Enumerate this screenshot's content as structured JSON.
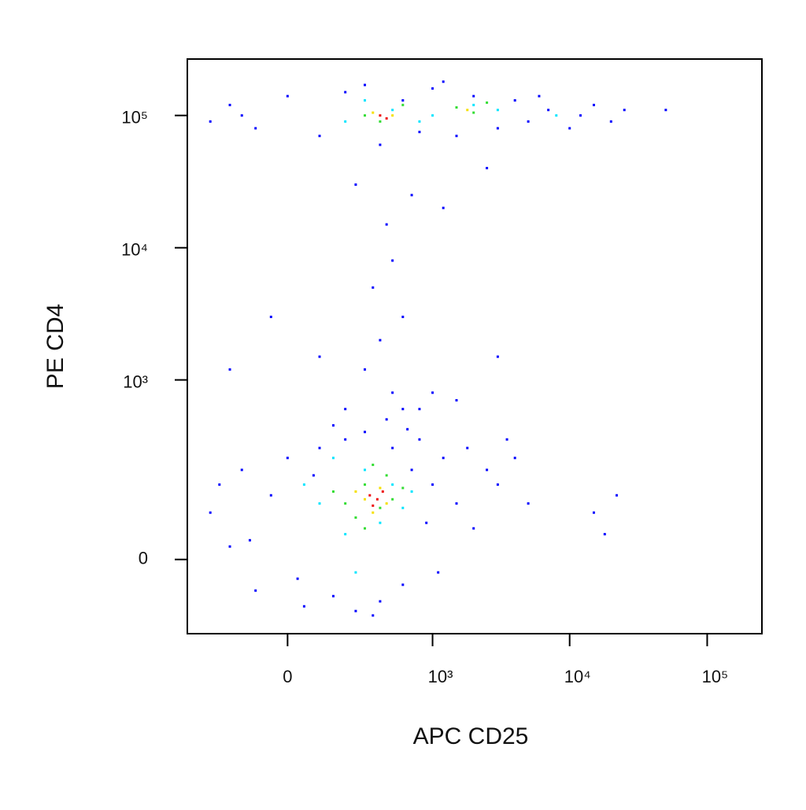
{
  "chart_data": {
    "type": "scatter",
    "xlabel": "APC CD25",
    "ylabel": "PE CD4",
    "xscale": "biexponential",
    "yscale": "biexponential",
    "xlim": [
      -460,
      250000
    ],
    "ylim": [
      -148,
      267000
    ],
    "xticks": [
      0,
      {
        "value": 1000,
        "label": "10³"
      },
      {
        "value": 10000,
        "label": "10⁴"
      },
      {
        "value": 100000,
        "label": "10⁵"
      }
    ],
    "yticks": [
      0,
      {
        "value": 1000,
        "label": "10³"
      },
      {
        "value": 10000,
        "label": "10⁴"
      },
      {
        "value": 100000,
        "label": "10⁵"
      }
    ],
    "series": [
      {
        "color": "#0000ff",
        "x": [
          -300,
          -250,
          -200,
          -150,
          -100,
          -50,
          0,
          50,
          80,
          100,
          150,
          200,
          250,
          300,
          400,
          500,
          600,
          700,
          800,
          900,
          1000,
          1200,
          1500,
          1800,
          2000,
          2500,
          3000,
          4000,
          5000,
          15000,
          18000,
          22000,
          -120,
          30,
          150,
          450,
          650,
          350,
          1100,
          3500,
          300,
          400,
          500,
          350,
          600,
          450,
          500,
          250,
          700,
          -50,
          100,
          800,
          1500,
          -200,
          3000,
          1200,
          2500,
          200,
          600,
          1000,
          -300,
          -200,
          -100,
          0,
          100,
          200,
          400,
          600,
          800,
          1000,
          1500,
          2000,
          3000,
          4000,
          5000,
          7000,
          10000,
          15000,
          20000,
          25000,
          50000,
          -150,
          300,
          1200,
          6000,
          12000
        ],
        "y": [
          80,
          150,
          20,
          200,
          -50,
          120,
          250,
          -80,
          180,
          300,
          -60,
          350,
          -90,
          400,
          -70,
          300,
          -40,
          200,
          350,
          60,
          150,
          250,
          100,
          300,
          50,
          200,
          150,
          250,
          100,
          80,
          40,
          120,
          30,
          -30,
          450,
          500,
          420,
          -100,
          -20,
          350,
          1200,
          2000,
          800,
          5000,
          3000,
          15000,
          8000,
          30000,
          25000,
          3000,
          1500,
          600,
          700,
          1200,
          1500,
          20000,
          40000,
          600,
          600,
          800,
          90000,
          120000,
          80000,
          140000,
          70000,
          150000,
          60000,
          130000,
          75000,
          160000,
          70000,
          140000,
          80000,
          130000,
          90000,
          110000,
          80000,
          120000,
          90000,
          110000,
          110000,
          100000,
          170000,
          180000,
          140000,
          100000
        ]
      },
      {
        "color": "#00e5ff",
        "x": [
          100,
          200,
          300,
          400,
          500,
          150,
          600,
          250,
          700,
          50,
          200,
          500,
          1000,
          2000,
          300,
          800,
          3000,
          8000
        ],
        "y": [
          100,
          40,
          200,
          60,
          150,
          250,
          90,
          -20,
          130,
          150,
          90000,
          110000,
          100000,
          120000,
          130000,
          90000,
          110000,
          100000
        ]
      },
      {
        "color": "#33dd33",
        "x": [
          200,
          300,
          400,
          250,
          350,
          500,
          450,
          150,
          600,
          300,
          300,
          400,
          1500,
          2000,
          600,
          2500
        ],
        "y": [
          100,
          150,
          90,
          70,
          220,
          110,
          180,
          130,
          140,
          50,
          100000,
          90000,
          115000,
          105000,
          120000,
          125000
        ]
      },
      {
        "color": "#f5e000",
        "x": [
          300,
          400,
          350,
          250,
          450,
          350,
          500,
          1800
        ],
        "y": [
          110,
          140,
          80,
          130,
          100,
          105000,
          100000,
          110000
        ]
      },
      {
        "color": "#ee1111",
        "x": [
          330,
          380,
          420,
          350,
          400,
          450
        ],
        "y": [
          120,
          110,
          130,
          95,
          100000,
          95000
        ]
      }
    ]
  }
}
